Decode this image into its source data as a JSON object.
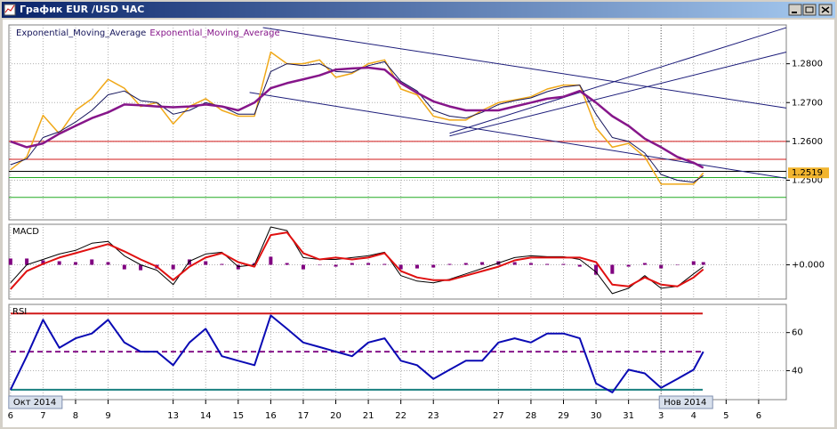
{
  "window": {
    "title": "График EUR /USD ЧАС"
  },
  "chart_data": [
    {
      "type": "line",
      "x": [
        0,
        0.5,
        1,
        1.5,
        2,
        2.5,
        3,
        3.5,
        4,
        4.5,
        5,
        5.5,
        6,
        6.5,
        7,
        7.5,
        8,
        8.5,
        9,
        9.5,
        10,
        10.5,
        11,
        11.5,
        12,
        12.5,
        13,
        13.5,
        14,
        14.5,
        15,
        15.5,
        16,
        16.5,
        17,
        17.5,
        18,
        18.5,
        19,
        19.5,
        20,
        20.5,
        21,
        21.3
      ],
      "xlim": [
        -0.05,
        23.85
      ],
      "ylim": [
        1.2398,
        1.29
      ],
      "yticks": [
        {
          "value": 1.25,
          "label": "1.2500"
        },
        {
          "value": 1.26,
          "label": "1.2600"
        },
        {
          "value": 1.27,
          "label": "1.2700"
        },
        {
          "value": 1.28,
          "label": "1.2800"
        }
      ],
      "marker": {
        "value": 1.2519,
        "label": "1.2519",
        "color": "#f2b52e"
      },
      "hlines": [
        {
          "value": 1.26,
          "color": "#d01818"
        },
        {
          "value": 1.2554,
          "color": "#d01818"
        },
        {
          "value": 1.2523,
          "color": "#000000"
        },
        {
          "value": 1.2507,
          "color": "#22aa22"
        },
        {
          "value": 1.2456,
          "color": "#22aa22"
        }
      ],
      "trendlines": [
        {
          "x": [
            7.76,
            23.85
          ],
          "values": [
            1.2893,
            1.2686
          ],
          "color": "#1c1c7a"
        },
        {
          "x": [
            7.35,
            23.85
          ],
          "values": [
            1.2726,
            1.2505
          ],
          "color": "#1c1c7a"
        },
        {
          "x": [
            13.5,
            23.85
          ],
          "values": [
            1.2621,
            1.2893
          ],
          "color": "#1c1c7a"
        },
        {
          "x": [
            13.5,
            23.85
          ],
          "values": [
            1.2614,
            1.283
          ],
          "color": "#1c1c7a"
        }
      ],
      "series": [
        {
          "color": "#f0a818",
          "width": 1.5,
          "values": [
            1.2527,
            1.256,
            1.2667,
            1.262,
            1.268,
            1.271,
            1.276,
            1.2737,
            1.269,
            1.27,
            1.2645,
            1.269,
            1.271,
            1.268,
            1.2665,
            1.2665,
            1.283,
            1.28,
            1.28,
            1.281,
            1.2765,
            1.2775,
            1.28,
            1.281,
            1.2735,
            1.272,
            1.2665,
            1.2655,
            1.2655,
            1.268,
            1.27,
            1.2707,
            1.2715,
            1.2735,
            1.2745,
            1.2745,
            1.2635,
            1.2585,
            1.2595,
            1.256,
            1.249,
            1.249,
            1.249,
            1.2519
          ]
        },
        {
          "name": "Exponential_Moving_Average",
          "color": "#14145a",
          "width": 1,
          "values": [
            1.254,
            1.2555,
            1.261,
            1.2625,
            1.265,
            1.268,
            1.272,
            1.273,
            1.2705,
            1.27,
            1.267,
            1.268,
            1.27,
            1.269,
            1.267,
            1.267,
            1.278,
            1.28,
            1.2795,
            1.28,
            1.278,
            1.2778,
            1.2795,
            1.2805,
            1.2755,
            1.273,
            1.268,
            1.2665,
            1.266,
            1.2675,
            1.2695,
            1.2705,
            1.2712,
            1.2728,
            1.274,
            1.2745,
            1.267,
            1.261,
            1.26,
            1.257,
            1.2515,
            1.25,
            1.2495,
            1.2512
          ]
        },
        {
          "name": "Exponential_Moving_Average",
          "color": "#86168a",
          "width": 2.5,
          "values": [
            1.26,
            1.2585,
            1.2595,
            1.262,
            1.264,
            1.266,
            1.2675,
            1.2695,
            1.2693,
            1.269,
            1.2688,
            1.269,
            1.2695,
            1.269,
            1.268,
            1.27,
            1.2737,
            1.275,
            1.276,
            1.277,
            1.2785,
            1.2788,
            1.279,
            1.2785,
            1.275,
            1.2725,
            1.2703,
            1.269,
            1.268,
            1.268,
            1.268,
            1.269,
            1.27,
            1.271,
            1.2715,
            1.273,
            1.27,
            1.2665,
            1.264,
            1.2607,
            1.2585,
            1.256,
            1.2545,
            1.2532
          ]
        }
      ]
    },
    {
      "type": "line",
      "title": "MACD",
      "x": [
        0,
        0.5,
        1,
        1.5,
        2,
        2.5,
        3,
        3.5,
        4,
        4.5,
        5,
        5.5,
        6,
        6.5,
        7,
        7.5,
        8,
        8.5,
        9,
        9.5,
        10,
        10.5,
        11,
        11.5,
        12,
        12.5,
        13,
        13.5,
        14,
        14.5,
        15,
        15.5,
        16,
        16.5,
        17,
        17.5,
        18,
        18.5,
        19,
        19.5,
        20,
        20.5,
        21,
        21.3
      ],
      "xlim": [
        -0.05,
        23.85
      ],
      "ylim": [
        -0.0038,
        0.0045
      ],
      "yticks": [
        {
          "value": 0,
          "label": "+0.000"
        }
      ],
      "series": [
        {
          "type": "bar",
          "color": "#800080",
          "values": [
            0.0007,
            0.0007,
            0.0005,
            0.0004,
            0.0003,
            0.0006,
            0.0003,
            -0.0005,
            -0.0006,
            -0.0004,
            -0.0005,
            0.0006,
            0.0004,
            0.0001,
            -0.0005,
            0.0002,
            0.0009,
            0.0002,
            -0.0005,
            0,
            -0.0002,
            0.0002,
            0.0002,
            0.0001,
            -0.0005,
            -0.0004,
            -0.0003,
            0.0001,
            0.0002,
            0.0003,
            0.0004,
            0.0003,
            0.0002,
            0.0001,
            0.0001,
            -0.0002,
            -0.0011,
            -0.001,
            -0.0002,
            0.0002,
            -0.0004,
            0,
            0.0004,
            0.0003
          ]
        },
        {
          "color": "#000000",
          "width": 1,
          "values": [
            -0.002,
            0,
            0.0006,
            0.0012,
            0.0016,
            0.0024,
            0.0026,
            0.001,
            0,
            -0.0006,
            -0.0022,
            0.0004,
            0.0012,
            0.0014,
            -0.0002,
            0,
            0.0042,
            0.0038,
            0.0008,
            0.0006,
            0.0006,
            0.0008,
            0.001,
            0.0014,
            -0.0012,
            -0.0018,
            -0.002,
            -0.0016,
            -0.001,
            -0.0004,
            0.0002,
            0.0008,
            0.001,
            0.0009,
            0.0009,
            0.0006,
            -0.0008,
            -0.0032,
            -0.0026,
            -0.0012,
            -0.0026,
            -0.0024,
            -0.001,
            -0.0002
          ]
        },
        {
          "color": "#e01010",
          "width": 2,
          "values": [
            -0.0027,
            -0.0007,
            0.0001,
            0.0008,
            0.0013,
            0.0018,
            0.0023,
            0.0015,
            0.0006,
            -0.0002,
            -0.0017,
            -0.0002,
            0.0008,
            0.0013,
            0.0003,
            -0.0002,
            0.0033,
            0.0036,
            0.0013,
            0.0006,
            0.0008,
            0.0006,
            0.0008,
            0.0013,
            -0.0007,
            -0.0014,
            -0.0017,
            -0.0017,
            -0.0012,
            -0.0007,
            -0.0002,
            0.0005,
            0.0008,
            0.0008,
            0.0008,
            0.0008,
            0.0003,
            -0.0022,
            -0.0024,
            -0.0014,
            -0.0022,
            -0.0024,
            -0.0014,
            -0.0005
          ]
        }
      ]
    },
    {
      "type": "line",
      "title": "RSI",
      "x": [
        0,
        0.5,
        1,
        1.5,
        2,
        2.5,
        3,
        3.5,
        4,
        4.5,
        5,
        5.5,
        6,
        6.5,
        7,
        7.5,
        8,
        8.5,
        9,
        9.5,
        10,
        10.5,
        11,
        11.5,
        12,
        12.5,
        13,
        13.5,
        14,
        14.5,
        15,
        15.5,
        16,
        16.5,
        17,
        17.5,
        18,
        18.5,
        19,
        19.5,
        20,
        20.5,
        21,
        21.3
      ],
      "xlim": [
        -0.05,
        23.85
      ],
      "ylim": [
        24.8,
        74.8
      ],
      "yticks": [
        40,
        60
      ],
      "xticks": [
        {
          "value": 0,
          "label": "6"
        },
        {
          "value": 1,
          "label": "7"
        },
        {
          "value": 2,
          "label": "8"
        },
        {
          "value": 3,
          "label": "9"
        },
        {
          "value": 5,
          "label": "13"
        },
        {
          "value": 6,
          "label": "14"
        },
        {
          "value": 7,
          "label": "15"
        },
        {
          "value": 8,
          "label": "16"
        },
        {
          "value": 9,
          "label": "17"
        },
        {
          "value": 10,
          "label": "20"
        },
        {
          "value": 11,
          "label": "21"
        },
        {
          "value": 12,
          "label": "22"
        },
        {
          "value": 13,
          "label": "23"
        },
        {
          "value": 15,
          "label": "27"
        },
        {
          "value": 16,
          "label": "28"
        },
        {
          "value": 17,
          "label": "29"
        },
        {
          "value": 18,
          "label": "30"
        },
        {
          "value": 19,
          "label": "31"
        },
        {
          "value": 20,
          "label": "3"
        },
        {
          "value": 21,
          "label": "4"
        },
        {
          "value": 22,
          "label": "5"
        },
        {
          "value": 23,
          "label": "6"
        }
      ],
      "annotations": [
        {
          "x": 0,
          "text": "Окт 2014"
        },
        {
          "x": 20,
          "text": "Нов 2014"
        }
      ],
      "hlines": [
        {
          "value": 70,
          "color": "#d01818"
        },
        {
          "value": 50,
          "color": "#86168a",
          "dash": true
        },
        {
          "value": 30,
          "color": "#188080"
        }
      ],
      "series": [
        {
          "color": "#0a0ab4",
          "width": 2,
          "values": [
            30,
            47.6,
            66.7,
            52,
            57,
            59.5,
            66.7,
            54.8,
            50,
            50,
            42.9,
            54.8,
            62,
            47.6,
            45.2,
            42.9,
            69,
            62,
            54.8,
            52.4,
            50,
            47.6,
            54.8,
            57,
            45.2,
            42.9,
            35.7,
            40.5,
            45.2,
            45.2,
            54.8,
            57,
            54.8,
            59.5,
            59.5,
            57,
            33.3,
            28.6,
            40.5,
            38.6,
            31,
            35.7,
            40.5,
            50
          ]
        }
      ]
    }
  ]
}
